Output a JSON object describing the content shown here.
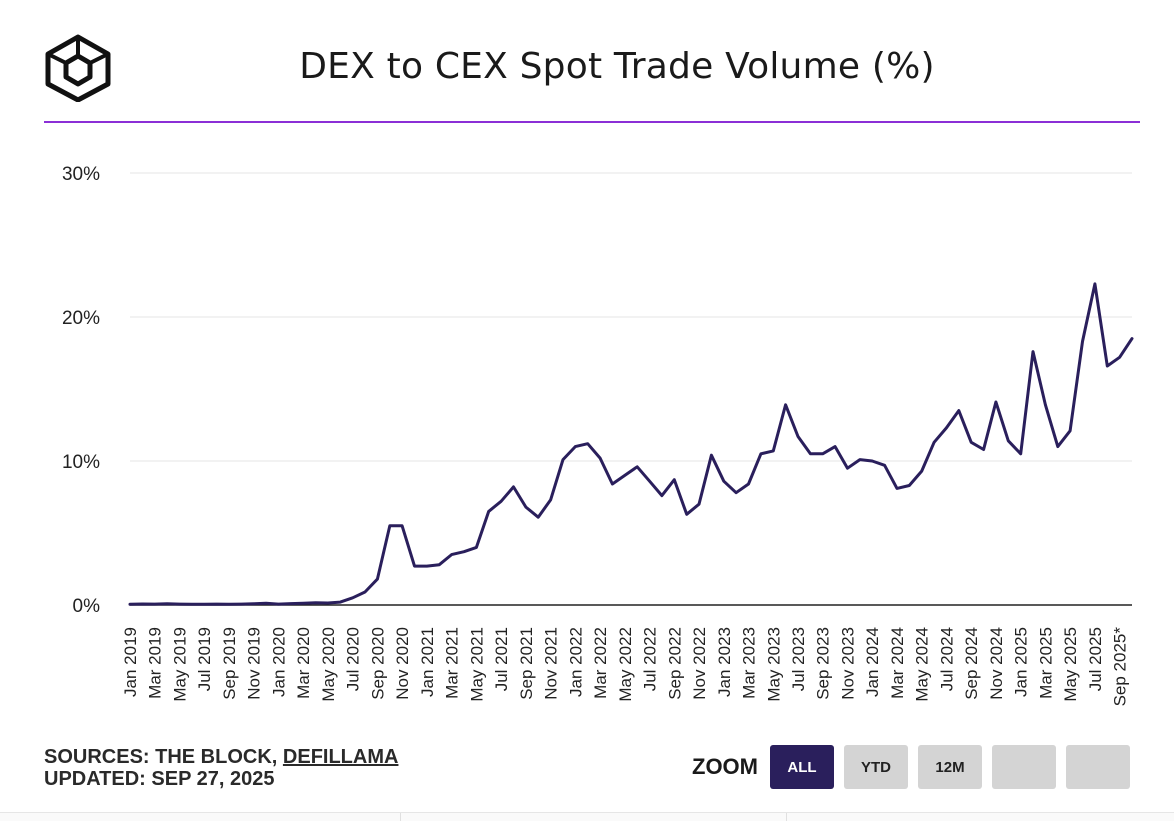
{
  "header": {
    "title": "DEX to CEX Spot Trade Volume (%)",
    "logo_icon": "cube-logo-icon"
  },
  "footer": {
    "sources_prefix": "SOURCES: THE BLOCK, ",
    "sources_link": "DEFILLAMA",
    "updated": "UPDATED: SEP 27, 2025"
  },
  "zoom": {
    "label": "ZOOM",
    "buttons": [
      {
        "label": "ALL",
        "active": true
      },
      {
        "label": "YTD",
        "active": false
      },
      {
        "label": "12M",
        "active": false
      },
      {
        "label": "",
        "active": false
      },
      {
        "label": "",
        "active": false
      }
    ]
  },
  "colors": {
    "line": "#2a1f5c",
    "accent_rule": "#8b2fd6",
    "grid": "#e6e6e6",
    "axis": "#222222",
    "active_button": "#2a1f5c",
    "button": "#d4d4d4"
  },
  "chart_data": {
    "type": "line",
    "title": "DEX to CEX Spot Trade Volume (%)",
    "xlabel": "",
    "ylabel": "",
    "ylim": [
      0,
      30
    ],
    "yticks": [
      "0%",
      "10%",
      "20%",
      "30%"
    ],
    "grid": true,
    "x_tick_labels": [
      "Jan 2019",
      "Mar 2019",
      "May 2019",
      "Jul 2019",
      "Sep 2019",
      "Nov 2019",
      "Jan 2020",
      "Mar 2020",
      "May 2020",
      "Jul 2020",
      "Sep 2020",
      "Nov 2020",
      "Jan 2021",
      "Mar 2021",
      "May 2021",
      "Jul 2021",
      "Sep 2021",
      "Nov 2021",
      "Jan 2022",
      "Mar 2022",
      "May 2022",
      "Jul 2022",
      "Sep 2022",
      "Nov 2022",
      "Jan 2023",
      "Mar 2023",
      "May 2023",
      "Jul 2023",
      "Sep 2023",
      "Nov 2023",
      "Jan 2024",
      "Mar 2024",
      "May 2024",
      "Jul 2024",
      "Sep 2024",
      "Nov 2024",
      "Jan 2025",
      "Mar 2025",
      "May 2025",
      "Jul 2025",
      "Sep 2025*"
    ],
    "series": [
      {
        "values": [
          0.05,
          0.07,
          0.06,
          0.08,
          0.06,
          0.05,
          0.05,
          0.06,
          0.05,
          0.06,
          0.08,
          0.12,
          0.06,
          0.1,
          0.12,
          0.15,
          0.14,
          0.2,
          0.5,
          0.9,
          1.8,
          5.5,
          5.5,
          2.7,
          2.7,
          2.8,
          3.5,
          3.7,
          4.0,
          6.5,
          7.2,
          8.2,
          6.8,
          6.1,
          7.3,
          10.1,
          11.0,
          11.2,
          10.2,
          8.4,
          9.0,
          9.6,
          8.6,
          7.6,
          8.7,
          6.3,
          7.0,
          10.4,
          8.6,
          7.8,
          8.4,
          10.5,
          10.7,
          13.9,
          11.7,
          10.5,
          10.5,
          11.0,
          9.5,
          10.1,
          10.0,
          9.7,
          8.1,
          8.3,
          9.3,
          11.3,
          12.3,
          13.5,
          11.3,
          10.8,
          14.1,
          11.4,
          10.5,
          17.6,
          13.9,
          11.0,
          12.1,
          18.3,
          22.3,
          16.6,
          17.2,
          18.5
        ]
      }
    ]
  }
}
